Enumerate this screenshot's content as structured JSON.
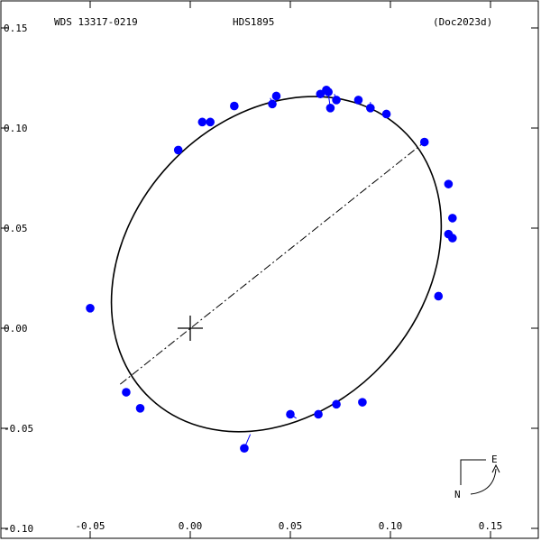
{
  "header": {
    "left": "WDS 13317-0219",
    "center": "HDS1895",
    "right": "(Doc2023d)"
  },
  "compass": {
    "east": "E",
    "north": "N"
  },
  "chart_data": {
    "type": "scatter",
    "title": "",
    "xlabel": "",
    "ylabel": "",
    "xlim": [
      -0.1,
      0.17
    ],
    "ylim": [
      -0.1,
      0.16
    ],
    "x_ticks": [
      "-0.05",
      "0.00",
      "0.05",
      "0.10",
      "0.15"
    ],
    "x_tick_values": [
      -0.05,
      0.0,
      0.05,
      0.1,
      0.15
    ],
    "y_ticks": [
      "0.15",
      "0.10",
      "0.05",
      "0.00",
      "-0.05",
      "-0.10"
    ],
    "y_tick_values": [
      0.15,
      0.1,
      0.05,
      0.0,
      -0.05,
      -0.1
    ],
    "primary_star": [
      0.0,
      0.0
    ],
    "line_of_nodes": [
      [
        -0.035,
        -0.028
      ],
      [
        0.117,
        0.093
      ]
    ],
    "orbit_ellipse": {
      "center": [
        0.043,
        0.032
      ],
      "semi_axis_major": 0.092,
      "semi_axis_minor": 0.073,
      "angle_deg": 47
    },
    "colors": {
      "points": "#0000ff",
      "orbit": "#000000",
      "residual": "#0000ff"
    },
    "observations": [
      {
        "x": -0.05,
        "y": 0.01,
        "ox": -0.049,
        "oy": 0.01
      },
      {
        "x": -0.006,
        "y": 0.089,
        "ox": -0.005,
        "oy": 0.091
      },
      {
        "x": 0.006,
        "y": 0.103,
        "ox": 0.006,
        "oy": 0.103
      },
      {
        "x": 0.01,
        "y": 0.103,
        "ox": 0.01,
        "oy": 0.104
      },
      {
        "x": 0.022,
        "y": 0.111,
        "ox": 0.022,
        "oy": 0.11
      },
      {
        "x": 0.041,
        "y": 0.112,
        "ox": 0.04,
        "oy": 0.115
      },
      {
        "x": 0.043,
        "y": 0.116,
        "ox": 0.043,
        "oy": 0.116
      },
      {
        "x": 0.065,
        "y": 0.117,
        "ox": 0.064,
        "oy": 0.117
      },
      {
        "x": 0.068,
        "y": 0.119,
        "ox": 0.068,
        "oy": 0.117
      },
      {
        "x": 0.069,
        "y": 0.118,
        "ox": 0.069,
        "oy": 0.117
      },
      {
        "x": 0.07,
        "y": 0.11,
        "ox": 0.069,
        "oy": 0.117
      },
      {
        "x": 0.073,
        "y": 0.114,
        "ox": 0.072,
        "oy": 0.117
      },
      {
        "x": 0.084,
        "y": 0.114,
        "ox": 0.084,
        "oy": 0.115
      },
      {
        "x": 0.09,
        "y": 0.11,
        "ox": 0.09,
        "oy": 0.113
      },
      {
        "x": 0.098,
        "y": 0.107,
        "ox": 0.098,
        "oy": 0.108
      },
      {
        "x": 0.117,
        "y": 0.093,
        "ox": 0.117,
        "oy": 0.093
      },
      {
        "x": 0.129,
        "y": 0.072,
        "ox": 0.128,
        "oy": 0.072
      },
      {
        "x": 0.131,
        "y": 0.055,
        "ox": 0.13,
        "oy": 0.056
      },
      {
        "x": 0.129,
        "y": 0.047,
        "ox": 0.13,
        "oy": 0.047
      },
      {
        "x": 0.131,
        "y": 0.045,
        "ox": 0.13,
        "oy": 0.046
      },
      {
        "x": 0.124,
        "y": 0.016,
        "ox": 0.125,
        "oy": 0.018
      },
      {
        "x": 0.086,
        "y": -0.037,
        "ox": 0.084,
        "oy": -0.036
      },
      {
        "x": 0.073,
        "y": -0.038,
        "ox": 0.073,
        "oy": -0.039
      },
      {
        "x": 0.064,
        "y": -0.043,
        "ox": 0.064,
        "oy": -0.043
      },
      {
        "x": 0.05,
        "y": -0.043,
        "ox": 0.053,
        "oy": -0.045
      },
      {
        "x": 0.027,
        "y": -0.06,
        "ox": 0.03,
        "oy": -0.053
      },
      {
        "x": -0.025,
        "y": -0.04,
        "ox": -0.025,
        "oy": -0.04
      },
      {
        "x": -0.032,
        "y": -0.032,
        "ox": -0.032,
        "oy": -0.032
      }
    ]
  }
}
